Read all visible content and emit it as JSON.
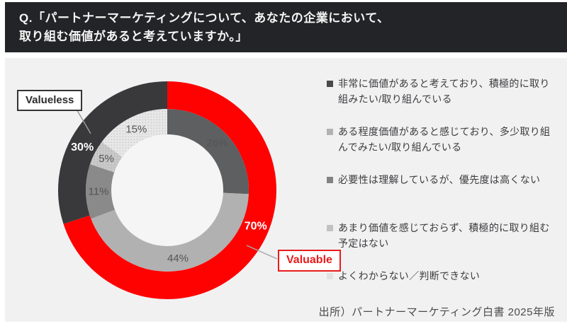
{
  "header": {
    "question_line1": "Q.「パートナーマーケティングについて、あなたの企業において、",
    "question_line2": "取り組む価値があると考えていますか。」"
  },
  "chart_data": {
    "type": "pie",
    "subtype": "double-ring-donut",
    "title": "パートナーマーケティングに取り組む価値の有無",
    "direction": "clockwise",
    "start_angle_deg": 0,
    "legend_position": "right",
    "series": [
      {
        "name": "detail",
        "ring": "inner",
        "slices": [
          {
            "name": "非常に価値があると考えており、積極的に取り組みたい/取り組んでいる",
            "label": "26%",
            "value": 26,
            "color": "#5e5f61",
            "dots": false
          },
          {
            "name": "ある程度価値があると感じており、多少取り組んでみたい/取り組んでいる",
            "label": "44%",
            "value": 44,
            "color": "#b1b1b1",
            "dots": false
          },
          {
            "name": "必要性は理解しているが、優先度は高くない",
            "label": "11%",
            "value": 11,
            "color": "#8a8a8a",
            "dots": false
          },
          {
            "name": "あまり価値を感じておらず、積極的に取り組む予定はない",
            "label": "5%",
            "value": 5,
            "color": "#c9c9c9",
            "dots": true
          },
          {
            "name": "よくわからない／判断できない",
            "label": "15%",
            "value": 15,
            "color": "#e7e7e7",
            "dots": true
          }
        ]
      },
      {
        "name": "summary",
        "ring": "outer",
        "slices": [
          {
            "name": "Valuable",
            "label": "70%",
            "value": 70,
            "color": "#fe0202",
            "text_color": "#ffffff",
            "label_angle_deg": 112
          },
          {
            "name": "Valueless",
            "label": "30%",
            "value": 30,
            "color": "#39393c",
            "text_color": "#ffffff",
            "label_angle_deg": 297
          }
        ]
      }
    ]
  },
  "annotations": {
    "valueless": {
      "text": "Valueless"
    },
    "valuable": {
      "text": "Valuable"
    }
  },
  "legend": {
    "items": [
      {
        "label": "非常に価値があると考えており、積極的に取り組みたい/取り組んでいる",
        "color": "#4a4a4c"
      },
      {
        "label": "ある程度価値があると感じており、多少取り組んでみたい/取り組んでいる",
        "color": "#b3b3b3"
      },
      {
        "label": "必要性は理解しているが、優先度は高くない",
        "color": "#828284"
      },
      {
        "label": "あまり価値を感じておらず、積極的に取り組む予定はない",
        "color": "#c2c2c2"
      },
      {
        "label": "よくわからない／判断できない",
        "color": "#e2e2e2"
      }
    ]
  },
  "source": {
    "text": "出所）パートナーマーケティング白書 2025年版"
  }
}
